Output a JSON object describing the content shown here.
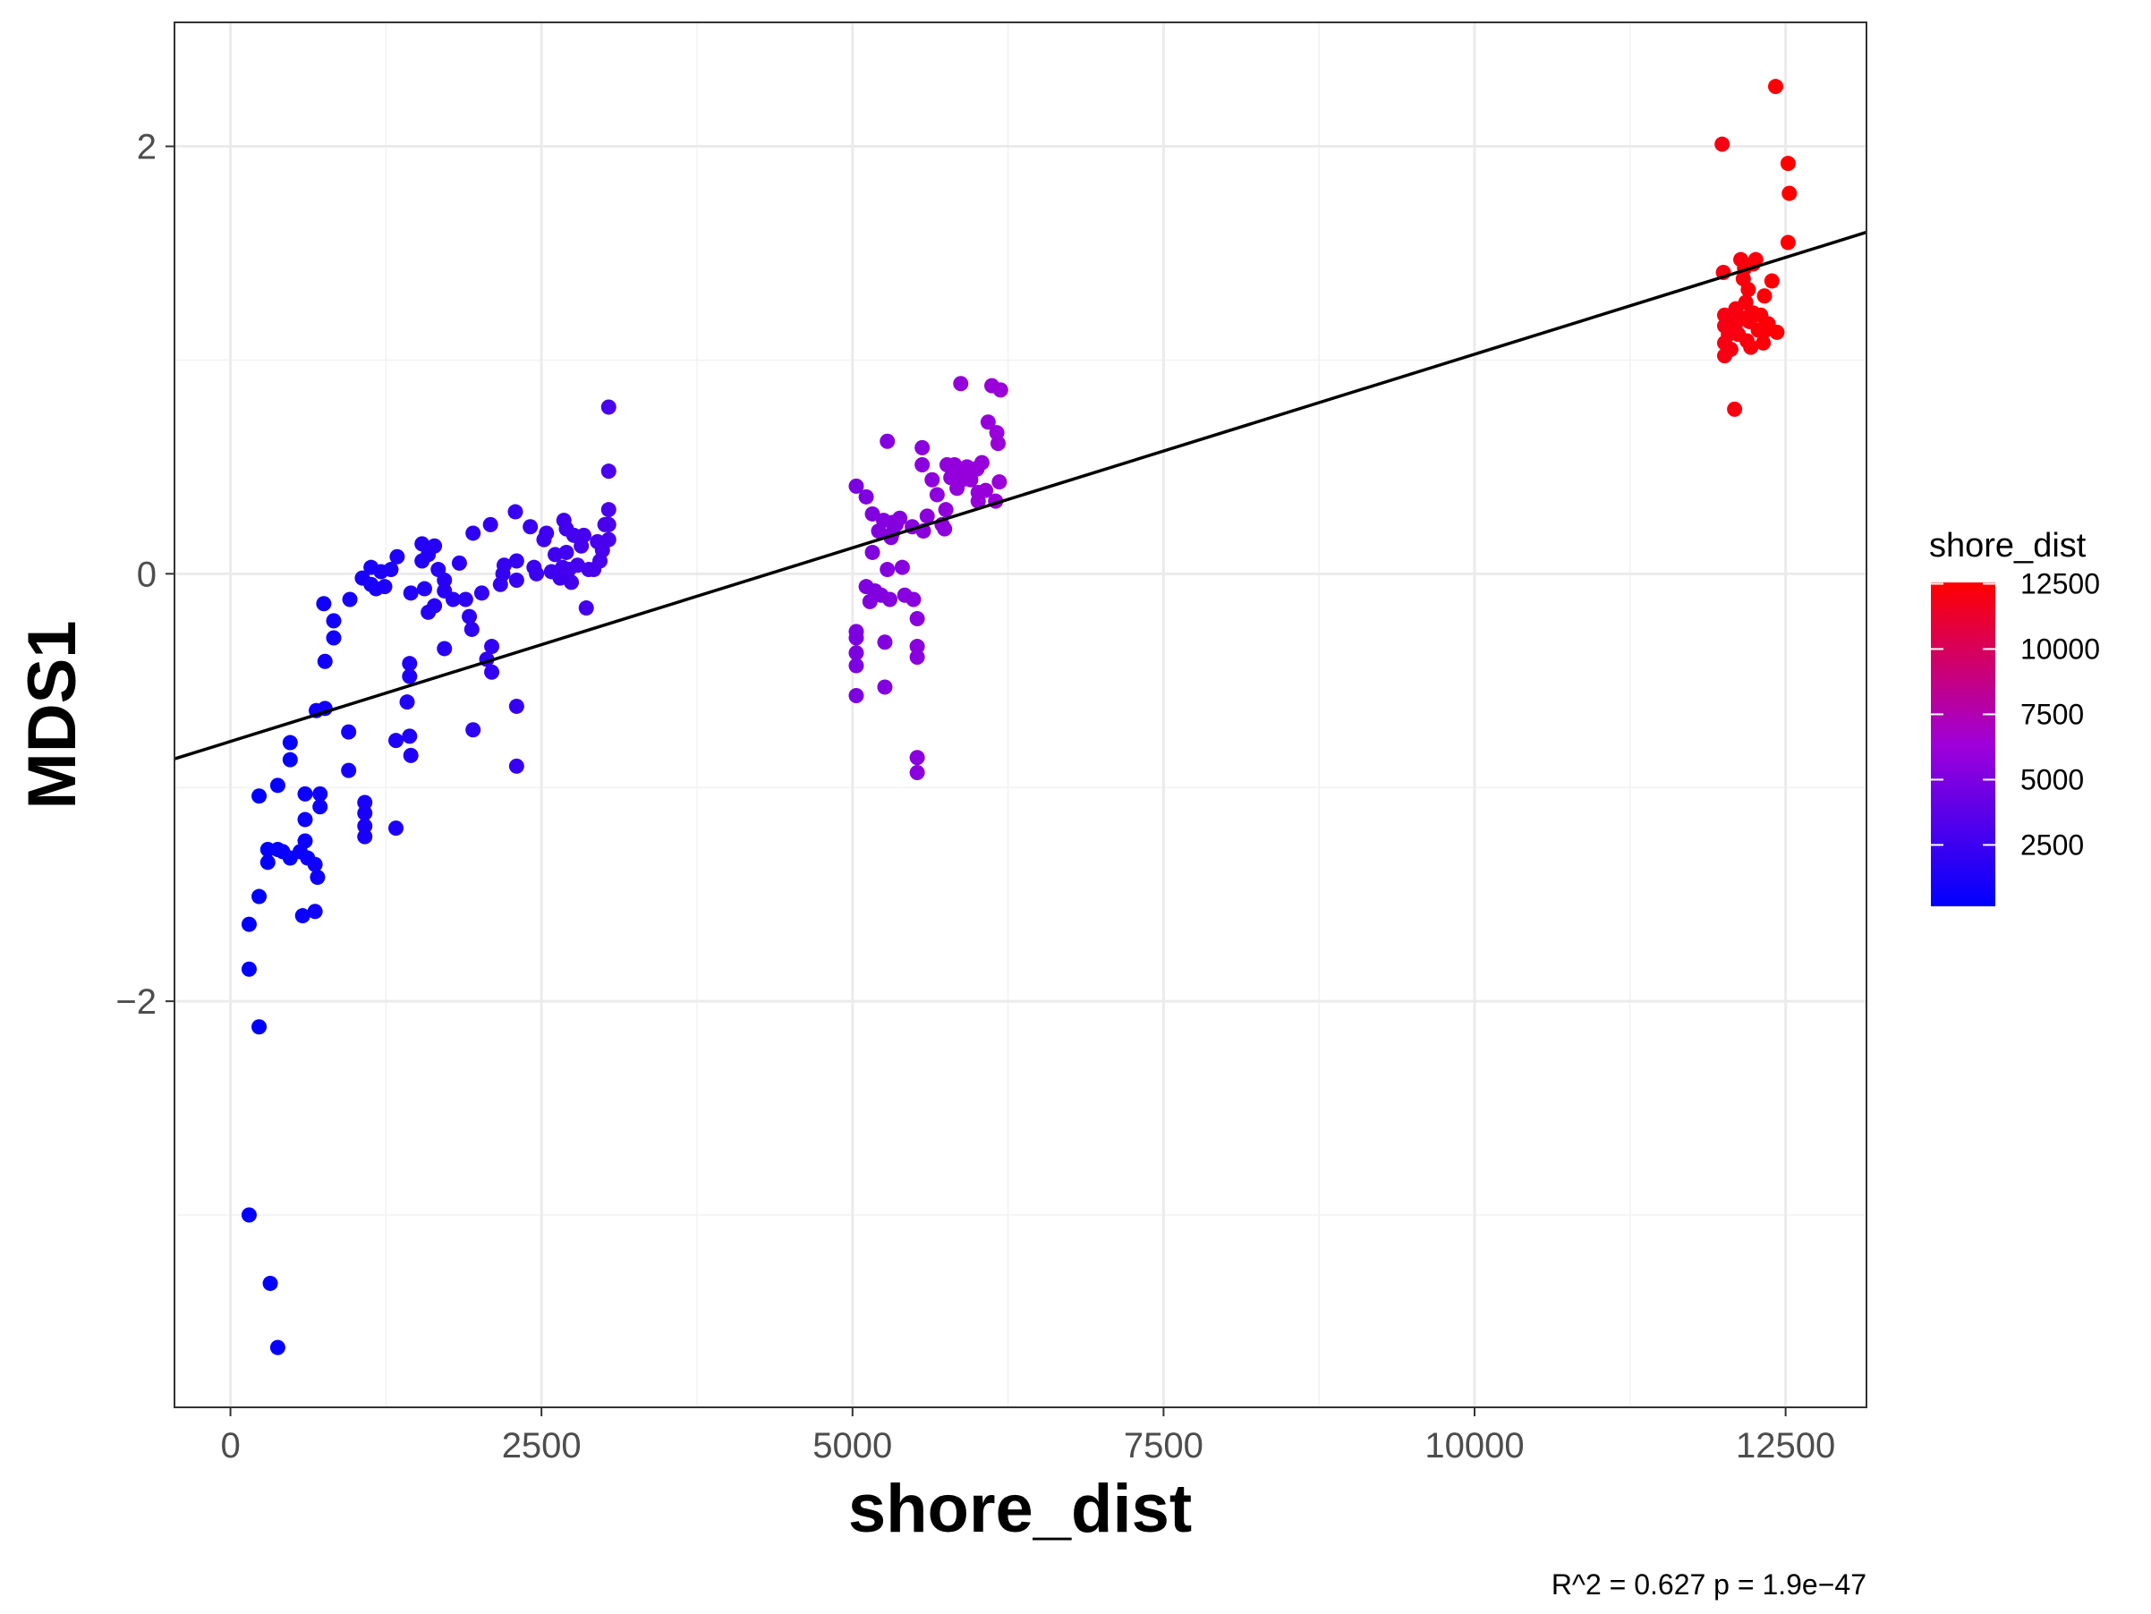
{
  "chart_data": {
    "type": "scatter",
    "xlabel": "shore_dist",
    "ylabel": "MDS1",
    "xlim": [
      -450,
      13150
    ],
    "ylim": [
      -3.9,
      2.58
    ],
    "x_ticks": [
      0,
      2500,
      5000,
      7500,
      10000,
      12500
    ],
    "y_ticks": [
      -2,
      0,
      2
    ],
    "grid": true,
    "legend": {
      "title": "shore_dist",
      "position": "right",
      "ticks": [
        2500,
        5000,
        7500,
        10000,
        12500
      ],
      "range": [
        150,
        12550
      ],
      "colors": {
        "low": "#0000ff",
        "mid": "#9f00d9",
        "high": "#ff0000"
      }
    },
    "regression": {
      "x1": -450,
      "y1": -0.866,
      "x2": 13150,
      "y2": 1.598,
      "color": "#000000"
    },
    "caption": "R^2 =  0.627 p = 1.9e−47",
    "points": [
      [
        150,
        -3.0
      ],
      [
        320,
        -3.32
      ],
      [
        380,
        -3.62
      ],
      [
        150,
        -1.85
      ],
      [
        230,
        -2.12
      ],
      [
        150,
        -1.64
      ],
      [
        230,
        -1.51
      ],
      [
        230,
        -1.04
      ],
      [
        380,
        -0.99
      ],
      [
        480,
        -0.87
      ],
      [
        480,
        -0.79
      ],
      [
        300,
        -1.29
      ],
      [
        300,
        -1.35
      ],
      [
        380,
        -1.29
      ],
      [
        420,
        -1.3
      ],
      [
        480,
        -1.33
      ],
      [
        560,
        -1.3
      ],
      [
        600,
        -1.25
      ],
      [
        600,
        -1.15
      ],
      [
        600,
        -1.03
      ],
      [
        620,
        -1.33
      ],
      [
        680,
        -1.36
      ],
      [
        700,
        -1.42
      ],
      [
        580,
        -1.6
      ],
      [
        680,
        -1.58
      ],
      [
        720,
        -1.03
      ],
      [
        720,
        -1.09
      ],
      [
        690,
        -0.64
      ],
      [
        760,
        -0.63
      ],
      [
        760,
        -0.41
      ],
      [
        750,
        -0.14
      ],
      [
        830,
        -0.22
      ],
      [
        830,
        -0.3
      ],
      [
        950,
        -0.74
      ],
      [
        950,
        -0.92
      ],
      [
        960,
        -0.12
      ],
      [
        1080,
        -1.07
      ],
      [
        1080,
        -1.12
      ],
      [
        1080,
        -1.18
      ],
      [
        1080,
        -1.23
      ],
      [
        1060,
        -0.02
      ],
      [
        1130,
        -0.05
      ],
      [
        1130,
        0.03
      ],
      [
        1170,
        -0.07
      ],
      [
        1210,
        0.01
      ],
      [
        1240,
        -0.06
      ],
      [
        1290,
        0.02
      ],
      [
        1340,
        0.08
      ],
      [
        1330,
        -0.78
      ],
      [
        1330,
        -1.19
      ],
      [
        1420,
        -0.6
      ],
      [
        1440,
        -0.76
      ],
      [
        1440,
        -0.42
      ],
      [
        1440,
        -0.48
      ],
      [
        1450,
        -0.85
      ],
      [
        1450,
        -0.09
      ],
      [
        1540,
        0.14
      ],
      [
        1540,
        0.06
      ],
      [
        1590,
        0.09
      ],
      [
        1560,
        -0.07
      ],
      [
        1590,
        -0.18
      ],
      [
        1640,
        0.13
      ],
      [
        1640,
        -0.15
      ],
      [
        1670,
        0.02
      ],
      [
        1720,
        -0.03
      ],
      [
        1720,
        -0.35
      ],
      [
        1720,
        -0.08
      ],
      [
        1790,
        -0.12
      ],
      [
        1840,
        0.05
      ],
      [
        1890,
        -0.12
      ],
      [
        1920,
        -0.2
      ],
      [
        1940,
        -0.26
      ],
      [
        1950,
        -0.73
      ],
      [
        1950,
        0.19
      ],
      [
        2020,
        -0.09
      ],
      [
        2060,
        -0.4
      ],
      [
        2090,
        0.23
      ],
      [
        2100,
        -0.34
      ],
      [
        2100,
        -0.46
      ],
      [
        2170,
        -0.05
      ],
      [
        2190,
        0.0
      ],
      [
        2200,
        0.04
      ],
      [
        2290,
        0.29
      ],
      [
        2300,
        0.06
      ],
      [
        2300,
        -0.03
      ],
      [
        2300,
        -0.62
      ],
      [
        2300,
        -0.9
      ],
      [
        2410,
        0.22
      ],
      [
        2440,
        0.03
      ],
      [
        2460,
        0.0
      ],
      [
        2520,
        0.16
      ],
      [
        2540,
        0.19
      ],
      [
        2580,
        0.01
      ],
      [
        2610,
        0.09
      ],
      [
        2650,
        -0.02
      ],
      [
        2670,
        0.03
      ],
      [
        2680,
        0.25
      ],
      [
        2700,
        0.21
      ],
      [
        2700,
        0.1
      ],
      [
        2720,
        0.02
      ],
      [
        2740,
        -0.04
      ],
      [
        2760,
        0.18
      ],
      [
        2790,
        0.04
      ],
      [
        2820,
        0.13
      ],
      [
        2840,
        0.18
      ],
      [
        2860,
        -0.16
      ],
      [
        2880,
        0.02
      ],
      [
        2920,
        0.02
      ],
      [
        2950,
        0.15
      ],
      [
        2970,
        0.06
      ],
      [
        2990,
        0.11
      ],
      [
        3010,
        0.23
      ],
      [
        3040,
        0.78
      ],
      [
        3040,
        0.48
      ],
      [
        3040,
        0.3
      ],
      [
        3040,
        0.23
      ],
      [
        3040,
        0.16
      ],
      [
        5030,
        0.41
      ],
      [
        5030,
        -0.27
      ],
      [
        5030,
        -0.3
      ],
      [
        5030,
        -0.37
      ],
      [
        5030,
        -0.43
      ],
      [
        5030,
        -0.57
      ],
      [
        5110,
        0.36
      ],
      [
        5110,
        -0.06
      ],
      [
        5140,
        -0.13
      ],
      [
        5160,
        0.1
      ],
      [
        5160,
        0.28
      ],
      [
        5180,
        -0.08
      ],
      [
        5210,
        0.2
      ],
      [
        5230,
        -0.1
      ],
      [
        5250,
        0.25
      ],
      [
        5280,
        0.62
      ],
      [
        5260,
        -0.32
      ],
      [
        5260,
        -0.53
      ],
      [
        5280,
        0.02
      ],
      [
        5300,
        -0.12
      ],
      [
        5310,
        0.17
      ],
      [
        5320,
        0.24
      ],
      [
        5320,
        0.19
      ],
      [
        5350,
        0.23
      ],
      [
        5380,
        0.26
      ],
      [
        5400,
        0.03
      ],
      [
        5420,
        -0.1
      ],
      [
        5480,
        0.22
      ],
      [
        5490,
        -0.12
      ],
      [
        5520,
        -0.21
      ],
      [
        5520,
        -0.34
      ],
      [
        5520,
        -0.39
      ],
      [
        5520,
        -0.86
      ],
      [
        5520,
        -0.93
      ],
      [
        5560,
        0.59
      ],
      [
        5560,
        0.51
      ],
      [
        5570,
        0.2
      ],
      [
        5600,
        0.27
      ],
      [
        5640,
        0.44
      ],
      [
        5680,
        0.37
      ],
      [
        5720,
        0.23
      ],
      [
        5740,
        0.21
      ],
      [
        5750,
        0.3
      ],
      [
        5760,
        0.51
      ],
      [
        5790,
        0.45
      ],
      [
        5800,
        0.49
      ],
      [
        5820,
        0.51
      ],
      [
        5840,
        0.4
      ],
      [
        5860,
        0.45
      ],
      [
        5870,
        0.89
      ],
      [
        5880,
        0.44
      ],
      [
        5920,
        0.5
      ],
      [
        5950,
        0.44
      ],
      [
        5970,
        0.49
      ],
      [
        6000,
        0.49
      ],
      [
        6010,
        0.38
      ],
      [
        6010,
        0.34
      ],
      [
        6040,
        0.52
      ],
      [
        6070,
        0.39
      ],
      [
        6090,
        0.71
      ],
      [
        6120,
        0.88
      ],
      [
        6150,
        0.34
      ],
      [
        6160,
        0.66
      ],
      [
        6170,
        0.61
      ],
      [
        6180,
        0.43
      ],
      [
        6190,
        0.86
      ],
      [
        11990,
        2.01
      ],
      [
        12000,
        1.41
      ],
      [
        12010,
        1.21
      ],
      [
        12010,
        1.16
      ],
      [
        12010,
        1.08
      ],
      [
        12010,
        1.02
      ],
      [
        12040,
        1.12
      ],
      [
        12060,
        1.05
      ],
      [
        12080,
        1.17
      ],
      [
        12090,
        0.77
      ],
      [
        12100,
        1.24
      ],
      [
        12110,
        1.18
      ],
      [
        12120,
        1.12
      ],
      [
        12140,
        1.47
      ],
      [
        12160,
        1.38
      ],
      [
        12170,
        1.43
      ],
      [
        12180,
        1.27
      ],
      [
        12190,
        1.2
      ],
      [
        12190,
        1.09
      ],
      [
        12200,
        1.33
      ],
      [
        12210,
        1.18
      ],
      [
        12220,
        1.06
      ],
      [
        12240,
        1.22
      ],
      [
        12240,
        1.45
      ],
      [
        12260,
        1.47
      ],
      [
        12280,
        1.14
      ],
      [
        12300,
        1.21
      ],
      [
        12330,
        1.3
      ],
      [
        12320,
        1.08
      ],
      [
        12340,
        1.14
      ],
      [
        12350,
        1.17
      ],
      [
        12360,
        1.17
      ],
      [
        12390,
        1.37
      ],
      [
        12420,
        2.28
      ],
      [
        12430,
        1.13
      ],
      [
        12520,
        1.92
      ],
      [
        12520,
        1.55
      ],
      [
        12530,
        1.78
      ]
    ]
  }
}
